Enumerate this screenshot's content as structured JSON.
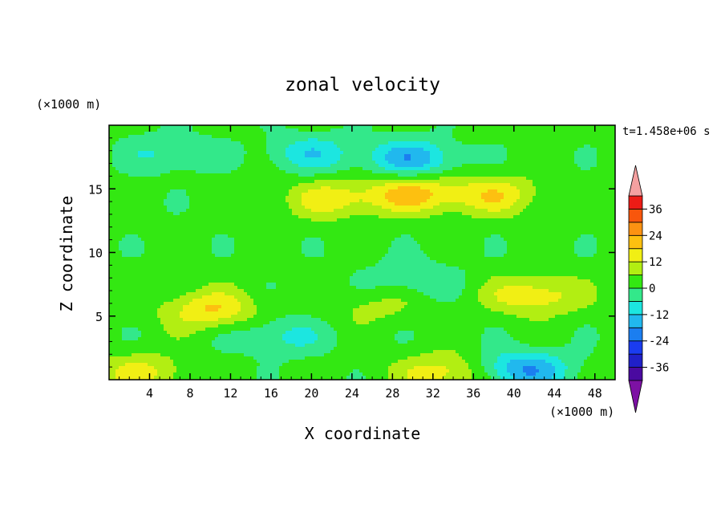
{
  "chart_data": {
    "type": "heatmap",
    "title": "zonal velocity",
    "xlabel": "X coordinate",
    "ylabel": "Z coordinate",
    "x_unit": "(×1000 m)",
    "y_unit": "(×1000 m)",
    "time_label": "t=1.458e+06 s",
    "xlim": [
      0,
      50
    ],
    "ylim": [
      0,
      20
    ],
    "x_ticks": [
      4,
      8,
      12,
      16,
      20,
      24,
      28,
      32,
      36,
      40,
      44,
      48
    ],
    "y_ticks": [
      5,
      10,
      15
    ],
    "colorbar": {
      "levels": [
        -42,
        -36,
        -30,
        -24,
        -18,
        -12,
        -6,
        0,
        6,
        12,
        18,
        24,
        30,
        36,
        42
      ],
      "tick_labels": [
        "36",
        "24",
        "12",
        "0",
        "-12",
        "-24",
        "-36"
      ],
      "tick_values": [
        36,
        24,
        12,
        0,
        -12,
        -24,
        -36
      ],
      "colors": [
        "#7d11a4",
        "#4a0aa0",
        "#2020c8",
        "#1a3cf0",
        "#1b7ef0",
        "#21b8ee",
        "#1ce6e0",
        "#33e88a",
        "#33e812",
        "#b2ee12",
        "#f1ef14",
        "#fdc010",
        "#fc9212",
        "#f8560c",
        "#ec1c16",
        "#f4a0a0"
      ],
      "extend_low_color": "#7d11a4",
      "extend_high_color": "#f4a0a0"
    },
    "features": [
      {
        "x": 10,
        "z": 5.5,
        "value": 16
      },
      {
        "x": 42,
        "z": 6.6,
        "value": 15
      },
      {
        "x": 26,
        "z": 5.8,
        "value": 6
      },
      {
        "x": 30,
        "z": 14.6,
        "value": 18
      },
      {
        "x": 22,
        "z": 14.2,
        "value": 13
      },
      {
        "x": 38,
        "z": 14.5,
        "value": 14
      },
      {
        "x": 30,
        "z": 17.4,
        "value": -18
      },
      {
        "x": 20,
        "z": 17.8,
        "value": -12
      },
      {
        "x": 6,
        "z": 17.8,
        "value": -9
      },
      {
        "x": 41,
        "z": 0.8,
        "value": -20
      },
      {
        "x": 33,
        "z": 0.5,
        "value": 14
      },
      {
        "x": 3,
        "z": 0.5,
        "value": 12
      },
      {
        "x": 17,
        "z": 3.4,
        "value": -10
      },
      {
        "x": 30,
        "z": 8.0,
        "value": -8
      }
    ]
  }
}
